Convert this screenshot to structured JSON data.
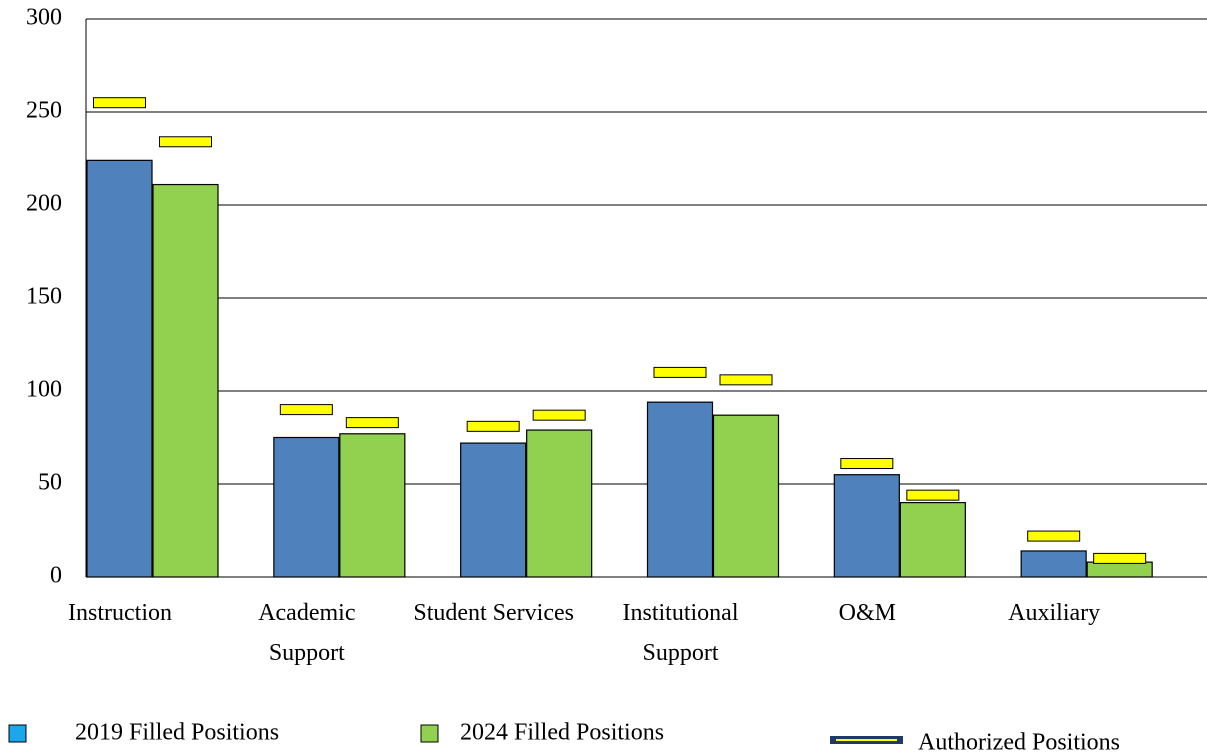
{
  "chart_data": {
    "type": "bar",
    "categories": [
      "Instruction",
      "Academic\nSupport",
      "Student Services",
      "Institutional\nSupport",
      "O&M",
      "Auxiliary"
    ],
    "series": [
      {
        "name": "2019 Filled Positions",
        "color": "#4f81bd",
        "legend_color": "#1aa7ec",
        "values": [
          224,
          75,
          72,
          94,
          55,
          14
        ]
      },
      {
        "name": "2024 Filled Positions",
        "color": "#92d050",
        "legend_color": "#92d050",
        "values": [
          211,
          77,
          79,
          87,
          40,
          8
        ]
      }
    ],
    "markers": {
      "name": "Authorized Positions",
      "color": "#ffff00",
      "values": [
        [
          255,
          234
        ],
        [
          90,
          83
        ],
        [
          81,
          87
        ],
        [
          110,
          106
        ],
        [
          61,
          44
        ],
        [
          22,
          10
        ]
      ]
    },
    "ylim": [
      0,
      300
    ],
    "yticks": [
      0,
      50,
      100,
      150,
      200,
      250,
      300
    ],
    "grid": true
  }
}
